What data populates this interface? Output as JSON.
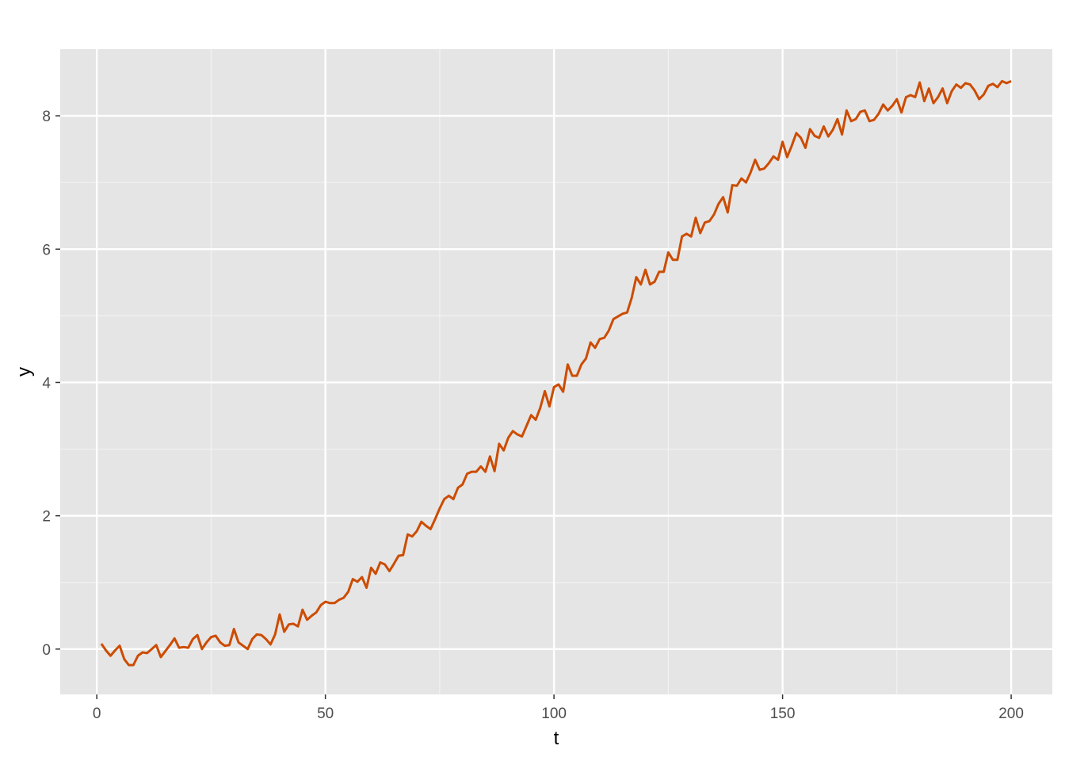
{
  "chart_data": {
    "type": "line",
    "title": "",
    "xlabel": "t",
    "ylabel": "y",
    "xlim": [
      -8,
      209
    ],
    "ylim": [
      -0.68,
      9.0
    ],
    "x_ticks": [
      0,
      50,
      100,
      150,
      200
    ],
    "y_ticks": [
      0,
      2,
      4,
      6,
      8
    ],
    "x_minor": [
      25,
      75,
      125,
      175
    ],
    "y_minor": [
      1,
      3,
      5,
      7
    ],
    "grid": true,
    "legend": "none",
    "colors": {
      "panel_background": "#e5e5e5",
      "major_grid": "#ffffff",
      "minor_grid": "#f2f2f2",
      "line": "#cc4c02",
      "tick_text": "#4d4d4d",
      "tick_mark": "#333333"
    },
    "series": [
      {
        "values": [
          0.08,
          -0.02,
          -0.1,
          -0.02,
          0.05,
          -0.15,
          -0.24,
          -0.24,
          -0.1,
          -0.05,
          -0.06,
          0.0,
          0.06,
          -0.12,
          -0.03,
          0.06,
          0.16,
          0.02,
          0.03,
          0.02,
          0.15,
          0.21,
          0.0,
          0.1,
          0.18,
          0.2,
          0.1,
          0.05,
          0.06,
          0.3,
          0.1,
          0.05,
          0.0,
          0.15,
          0.22,
          0.21,
          0.15,
          0.07,
          0.22,
          0.52,
          0.26,
          0.37,
          0.38,
          0.34,
          0.59,
          0.44,
          0.5,
          0.55,
          0.66,
          0.71,
          0.69,
          0.69,
          0.74,
          0.77,
          0.86,
          1.05,
          1.01,
          1.08,
          0.92,
          1.22,
          1.13,
          1.3,
          1.27,
          1.17,
          1.28,
          1.4,
          1.41,
          1.72,
          1.69,
          1.77,
          1.91,
          1.85,
          1.8,
          1.95,
          2.11,
          2.25,
          2.3,
          2.25,
          2.42,
          2.47,
          2.63,
          2.66,
          2.66,
          2.74,
          2.66,
          2.89,
          2.67,
          3.08,
          2.98,
          3.17,
          3.27,
          3.22,
          3.19,
          3.35,
          3.51,
          3.44,
          3.62,
          3.87,
          3.64,
          3.93,
          3.97,
          3.86,
          4.27,
          4.1,
          4.1,
          4.27,
          4.36,
          4.6,
          4.52,
          4.65,
          4.67,
          4.78,
          4.95,
          4.99,
          5.03,
          5.05,
          5.27,
          5.58,
          5.47,
          5.69,
          5.47,
          5.51,
          5.66,
          5.66,
          5.95,
          5.84,
          5.84,
          6.19,
          6.23,
          6.19,
          6.47,
          6.24,
          6.4,
          6.42,
          6.52,
          6.68,
          6.78,
          6.55,
          6.96,
          6.95,
          7.06,
          7.0,
          7.15,
          7.34,
          7.19,
          7.21,
          7.29,
          7.39,
          7.34,
          7.61,
          7.38,
          7.55,
          7.74,
          7.67,
          7.52,
          7.8,
          7.7,
          7.67,
          7.84,
          7.69,
          7.79,
          7.95,
          7.72,
          8.08,
          7.92,
          7.95,
          8.06,
          8.08,
          7.92,
          7.94,
          8.03,
          8.17,
          8.08,
          8.15,
          8.25,
          8.05,
          8.28,
          8.31,
          8.28,
          8.5,
          8.22,
          8.41,
          8.19,
          8.28,
          8.41,
          8.19,
          8.37,
          8.47,
          8.42,
          8.49,
          8.47,
          8.38,
          8.25,
          8.32,
          8.45,
          8.48,
          8.43,
          8.52,
          8.49,
          8.52
        ],
        "x_start": 1,
        "x_step": 1
      }
    ]
  }
}
